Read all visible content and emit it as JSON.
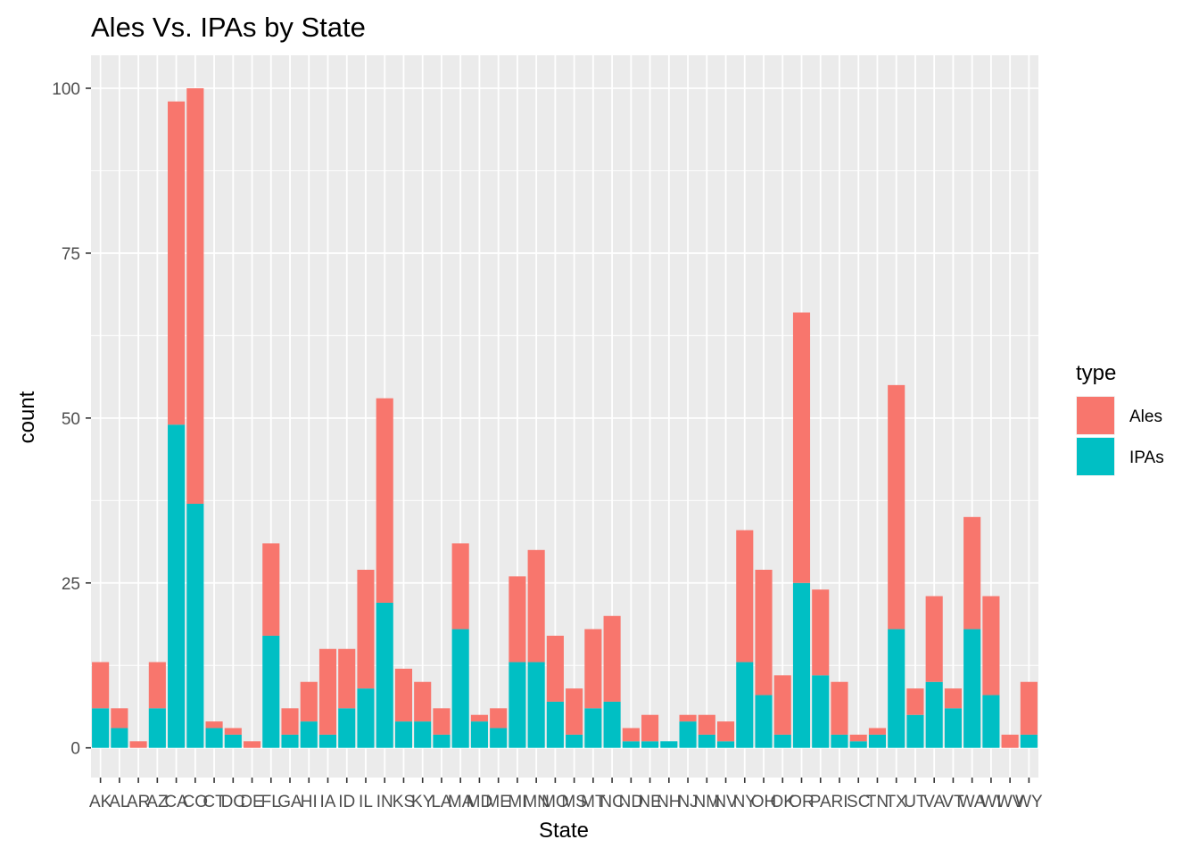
{
  "chart_data": {
    "type": "bar",
    "stacked": true,
    "title": "Ales Vs. IPAs by State",
    "xlabel": "State",
    "ylabel": "count",
    "ylim": [
      -4.5,
      105
    ],
    "yticks": [
      0,
      25,
      50,
      75,
      100
    ],
    "grid": true,
    "legend": {
      "title": "type",
      "position": "right"
    },
    "colors": {
      "panel": "#ebebeb",
      "grid": "#ffffff",
      "Ales": "#f8766d",
      "IPAs": "#00bfc4"
    },
    "categories": [
      "AK",
      "AL",
      "AR",
      "AZ",
      "CA",
      "CO",
      "CT",
      "DC",
      "DE",
      "FL",
      "GA",
      "HI",
      "IA",
      "ID",
      "IL",
      "IN",
      "KS",
      "KY",
      "LA",
      "MA",
      "MD",
      "ME",
      "MI",
      "MN",
      "MO",
      "MS",
      "MT",
      "NC",
      "ND",
      "NE",
      "NH",
      "NJ",
      "NM",
      "NV",
      "NY",
      "OH",
      "OK",
      "OR",
      "PA",
      "RI",
      "SC",
      "TN",
      "TX",
      "UT",
      "VA",
      "VT",
      "WA",
      "WI",
      "WV",
      "WY"
    ],
    "series": [
      {
        "name": "Ales",
        "values": [
          7,
          3,
          1,
          7,
          49,
          63,
          1,
          1,
          1,
          14,
          4,
          6,
          13,
          9,
          18,
          31,
          8,
          6,
          4,
          13,
          1,
          3,
          13,
          17,
          10,
          7,
          12,
          13,
          2,
          4,
          0,
          1,
          3,
          3,
          20,
          19,
          9,
          41,
          13,
          8,
          1,
          1,
          37,
          4,
          13,
          3,
          17,
          15,
          2,
          8
        ]
      },
      {
        "name": "IPAs",
        "values": [
          6,
          3,
          0,
          6,
          49,
          37,
          3,
          2,
          0,
          17,
          2,
          4,
          2,
          6,
          9,
          22,
          4,
          4,
          2,
          18,
          4,
          3,
          13,
          13,
          7,
          2,
          6,
          7,
          1,
          1,
          1,
          4,
          2,
          1,
          13,
          8,
          2,
          25,
          11,
          2,
          1,
          2,
          18,
          5,
          10,
          6,
          18,
          8,
          0,
          2
        ]
      }
    ]
  }
}
